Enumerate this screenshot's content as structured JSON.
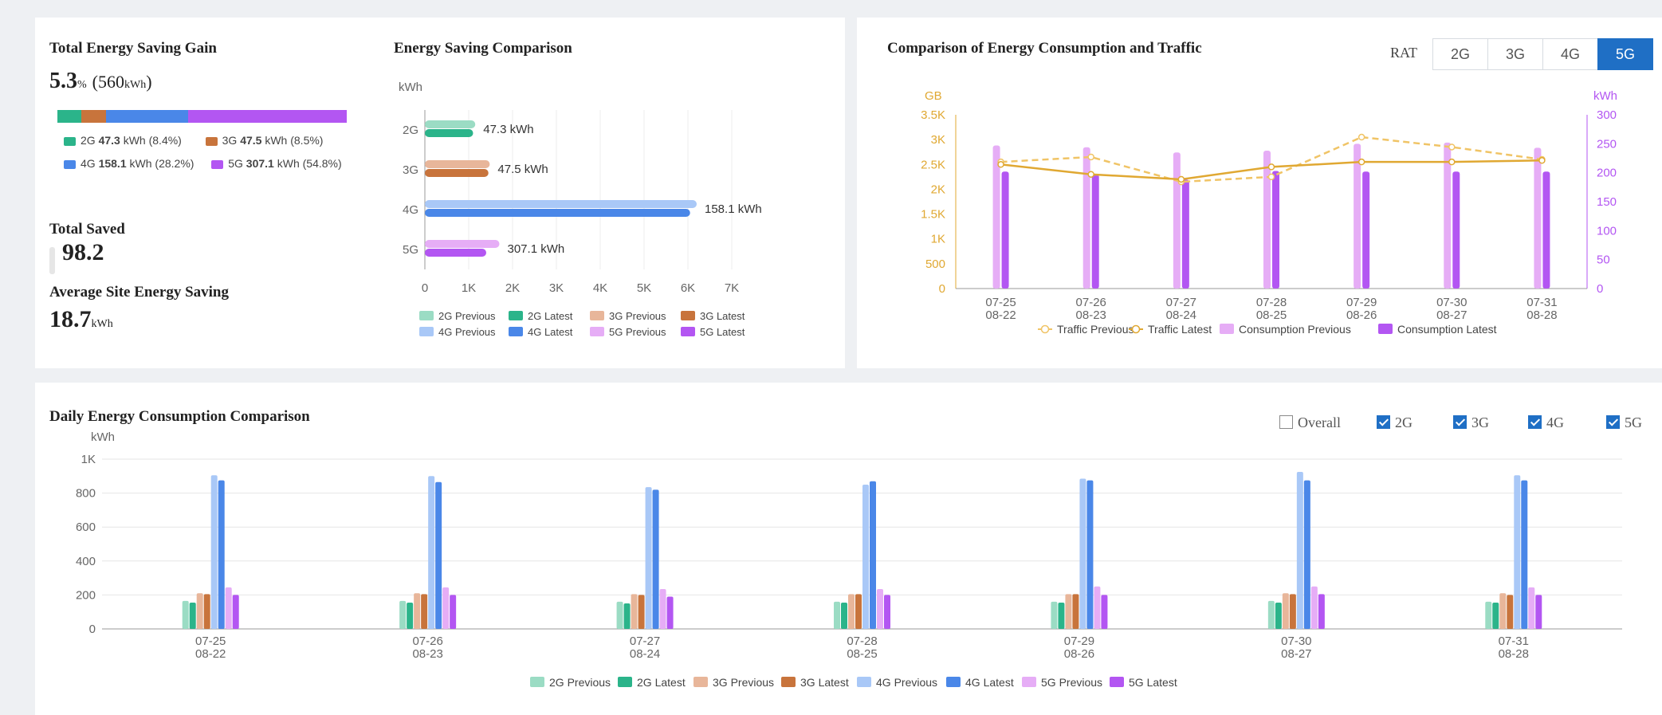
{
  "summary": {
    "gain_title": "Total Energy Saving Gain",
    "gain_pct": "5.3",
    "gain_pct_unit": "%",
    "gain_kwh": "(560",
    "gain_kwh_unit": "kWh",
    "gain_kwh_close": ")",
    "share_bar": [
      {
        "rat": "2G",
        "fraction": 0.084,
        "color": "#2bb48a"
      },
      {
        "rat": "3G",
        "fraction": 0.085,
        "color": "#c8743c"
      },
      {
        "rat": "4G",
        "fraction": 0.282,
        "color": "#4a87e8"
      },
      {
        "rat": "5G",
        "fraction": 0.548,
        "color": "#b356f2"
      }
    ],
    "legend": [
      {
        "rat": "2G",
        "value": "47.3",
        "unit": "kWh",
        "pct": "(8.4%)",
        "color": "#2bb48a"
      },
      {
        "rat": "3G",
        "value": "47.5",
        "unit": "kWh",
        "pct": "(8.5%)",
        "color": "#c8743c"
      },
      {
        "rat": "4G",
        "value": "158.1",
        "unit": "kWh",
        "pct": "(28.2%)",
        "color": "#4a87e8"
      },
      {
        "rat": "5G",
        "value": "307.1",
        "unit": "kWh",
        "pct": "(54.8%)",
        "color": "#b356f2"
      }
    ],
    "total_saved_label": "Total Saved",
    "total_saved_value": "98.2",
    "avg_label": "Average Site Energy Saving",
    "avg_value": "18.7",
    "avg_unit": "kWh"
  },
  "rat_selector": {
    "label": "RAT",
    "options": [
      "2G",
      "3G",
      "4G",
      "5G"
    ],
    "active": "5G"
  },
  "daily_filters": [
    {
      "label": "Overall",
      "checked": false
    },
    {
      "label": "2G",
      "checked": true
    },
    {
      "label": "3G",
      "checked": true
    },
    {
      "label": "4G",
      "checked": true
    },
    {
      "label": "5G",
      "checked": true
    }
  ],
  "colors": {
    "2G Previous": "#9bdcc4",
    "2G Latest": "#2bb48a",
    "3G Previous": "#e8b69a",
    "3G Latest": "#c8743c",
    "4G Previous": "#a9c8f7",
    "4G Latest": "#4a87e8",
    "5G Previous": "#e6adf6",
    "5G Latest": "#b356f2",
    "traffic": "#e0a832"
  },
  "chart_data": [
    {
      "type": "bar",
      "orientation": "horizontal",
      "title": "Energy Saving Comparison",
      "unit_label": "kWh",
      "categories": [
        "2G",
        "3G",
        "4G",
        "5G"
      ],
      "series": [
        {
          "name": "Previous",
          "values": [
            1150,
            1480,
            6200,
            1700
          ]
        },
        {
          "name": "Latest",
          "values": [
            1100,
            1450,
            6050,
            1400
          ]
        }
      ],
      "data_labels": [
        "47.3 kWh",
        "47.5 kWh",
        "158.1 kWh",
        "307.1 kWh"
      ],
      "xticks": [
        "0",
        "1K",
        "2K",
        "3K",
        "4K",
        "5K",
        "6K",
        "7K"
      ],
      "xlim": [
        0,
        7000
      ],
      "legend": [
        "2G Previous",
        "2G Latest",
        "3G Previous",
        "3G Latest",
        "4G Previous",
        "4G Latest",
        "5G Previous",
        "5G Latest"
      ],
      "legend_position": "bottom"
    },
    {
      "type": "bar+line",
      "title": "Comparison of Energy Consumption and Traffic",
      "left_axis_label": "GB",
      "right_axis_label": "kWh",
      "left_ticks": [
        "0",
        "500",
        "1K",
        "1.5K",
        "2K",
        "2.5K",
        "3K",
        "3.5K"
      ],
      "right_ticks": [
        "0",
        "50",
        "100",
        "150",
        "200",
        "250",
        "300"
      ],
      "left_lim": [
        0,
        3500
      ],
      "right_lim": [
        0,
        300
      ],
      "x": [
        [
          "07-25",
          "08-22"
        ],
        [
          "07-26",
          "08-23"
        ],
        [
          "07-27",
          "08-24"
        ],
        [
          "07-28",
          "08-25"
        ],
        [
          "07-29",
          "08-26"
        ],
        [
          "07-30",
          "08-27"
        ],
        [
          "07-31",
          "08-28"
        ]
      ],
      "series": [
        {
          "name": "Traffic Previous",
          "axis": "left",
          "kind": "dashed-line",
          "values": [
            2550,
            2650,
            2150,
            2250,
            3050,
            2850,
            2600
          ]
        },
        {
          "name": "Traffic Latest",
          "axis": "left",
          "kind": "line",
          "values": [
            2500,
            2300,
            2200,
            2450,
            2550,
            2550,
            2580
          ]
        },
        {
          "name": "Consumption Previous",
          "axis": "right",
          "kind": "bar",
          "values": [
            247,
            244,
            235,
            238,
            250,
            252,
            243
          ]
        },
        {
          "name": "Consumption Latest",
          "axis": "right",
          "kind": "bar",
          "values": [
            202,
            197,
            188,
            203,
            202,
            202,
            202
          ]
        }
      ],
      "legend_position": "bottom"
    },
    {
      "type": "bar",
      "title": "Daily Energy Consumption Comparison",
      "unit_label": "kWh",
      "yticks": [
        "0",
        "200",
        "400",
        "600",
        "800",
        "1K"
      ],
      "ylim": [
        0,
        1000
      ],
      "x": [
        [
          "07-25",
          "08-22"
        ],
        [
          "07-26",
          "08-23"
        ],
        [
          "07-27",
          "08-24"
        ],
        [
          "07-28",
          "08-25"
        ],
        [
          "07-29",
          "08-26"
        ],
        [
          "07-30",
          "08-27"
        ],
        [
          "07-31",
          "08-28"
        ]
      ],
      "series": [
        {
          "name": "2G Previous",
          "values": [
            165,
            165,
            160,
            160,
            160,
            165,
            160
          ]
        },
        {
          "name": "2G Latest",
          "values": [
            155,
            155,
            150,
            155,
            155,
            155,
            155
          ]
        },
        {
          "name": "3G Previous",
          "values": [
            210,
            210,
            205,
            205,
            205,
            210,
            210
          ]
        },
        {
          "name": "3G Latest",
          "values": [
            205,
            205,
            200,
            205,
            205,
            205,
            200
          ]
        },
        {
          "name": "4G Previous",
          "values": [
            905,
            900,
            835,
            850,
            885,
            925,
            905
          ]
        },
        {
          "name": "4G Latest",
          "values": [
            875,
            865,
            820,
            870,
            875,
            875,
            875
          ]
        },
        {
          "name": "5G Previous",
          "values": [
            245,
            245,
            235,
            235,
            250,
            250,
            245
          ]
        },
        {
          "name": "5G Latest",
          "values": [
            200,
            200,
            190,
            200,
            200,
            205,
            200
          ]
        }
      ],
      "legend_position": "bottom"
    }
  ]
}
